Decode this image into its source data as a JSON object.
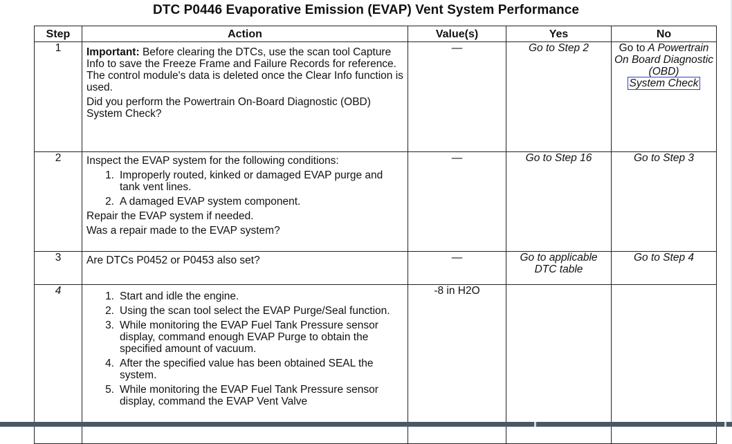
{
  "document": {
    "title": "DTC P0446 Evaporative Emission (EVAP) Vent System Performance",
    "columns": {
      "step": "Step",
      "action": "Action",
      "values": "Value(s)",
      "yes": "Yes",
      "no": "No"
    },
    "rows": [
      {
        "step": "1",
        "important_label": "Important:",
        "important_text": " Before clearing the DTCs, use the scan tool Capture Info to save the Freeze Frame and Failure Records for reference. The control module's data is deleted once the Clear Info function is used.",
        "question": "Did you perform the Powertrain On-Board Diagnostic (OBD) System Check?",
        "value": "—",
        "yes": "Go to Step 2",
        "no_prefix": "Go to",
        "no_italic": "A Powertrain On Board Diagnostic (OBD)",
        "no_link": "System Check"
      },
      {
        "step": "2",
        "intro": "Inspect the EVAP system for the following conditions:",
        "items": [
          {
            "num": "1.",
            "text": "Improperly routed, kinked or damaged EVAP purge and tank vent lines."
          },
          {
            "num": "2.",
            "text": "A damaged EVAP system component."
          }
        ],
        "note": "Repair the EVAP system if needed.",
        "question": "Was a repair made to the EVAP system?",
        "value": "—",
        "yes": "Go to Step 16",
        "no": "Go to Step 3"
      },
      {
        "step": "3",
        "question": "Are DTCs P0452 or P0453 also set?",
        "value": "—",
        "yes": "Go to applicable DTC table",
        "no": "Go to Step 4"
      },
      {
        "step": "4",
        "items": [
          {
            "num": "1.",
            "text": "Start and idle the engine."
          },
          {
            "num": "2.",
            "text": "Using the scan tool select the EVAP Purge/Seal function."
          },
          {
            "num": "3.",
            "text": "While monitoring the EVAP Fuel Tank Pressure sensor display, command enough EVAP Purge to obtain the specified amount of vacuum."
          },
          {
            "num": "4.",
            "text": "After the specified value has been obtained SEAL the system."
          },
          {
            "num": "5.",
            "text": "While monitoring the EVAP Fuel Tank Pressure sensor display, command the EVAP Vent Valve"
          }
        ],
        "value": "-8 in H2O"
      }
    ]
  }
}
